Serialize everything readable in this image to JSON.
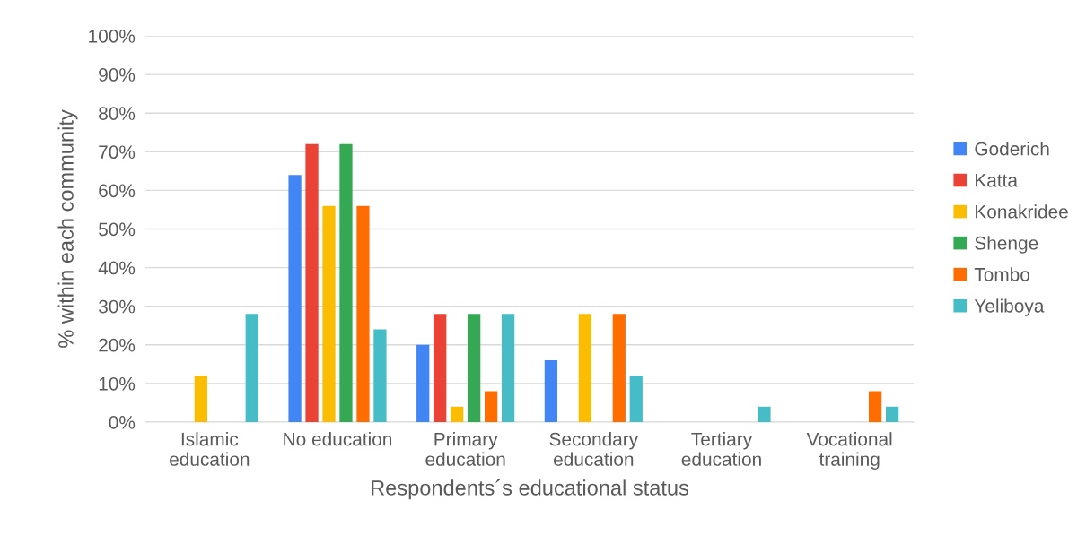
{
  "chart_data": {
    "type": "bar",
    "xlabel": "Respondents´s educational status",
    "ylabel": "% within each community",
    "categories": [
      "Islamic\neducation",
      "No education",
      "Primary\neducation",
      "Secondary\neducation",
      "Tertiary\neducation",
      "Vocational\ntraining"
    ],
    "series": [
      {
        "name": "Goderich",
        "color": "#4285f4",
        "values": [
          0,
          64,
          20,
          16,
          0,
          0
        ]
      },
      {
        "name": "Katta",
        "color": "#ea4335",
        "values": [
          0,
          72,
          28,
          0,
          0,
          0
        ]
      },
      {
        "name": "Konakridee",
        "color": "#fbbc04",
        "values": [
          12,
          56,
          4,
          28,
          0,
          0
        ]
      },
      {
        "name": "Shenge",
        "color": "#34a853",
        "values": [
          0,
          72,
          28,
          0,
          0,
          0
        ]
      },
      {
        "name": "Tombo",
        "color": "#ff6d01",
        "values": [
          0,
          56,
          8,
          28,
          0,
          8
        ]
      },
      {
        "name": "Yeliboya",
        "color": "#46bdc6",
        "values": [
          28,
          24,
          28,
          12,
          4,
          4
        ]
      }
    ],
    "ylim": [
      0,
      100
    ],
    "yticks": [
      {
        "value": 0,
        "label": "0%"
      },
      {
        "value": 10,
        "label": "10%"
      },
      {
        "value": 20,
        "label": "20%"
      },
      {
        "value": 30,
        "label": "30%"
      },
      {
        "value": 40,
        "label": "40%"
      },
      {
        "value": 50,
        "label": "50%"
      },
      {
        "value": 60,
        "label": "60%"
      },
      {
        "value": 70,
        "label": "70%"
      },
      {
        "value": 80,
        "label": "80%"
      },
      {
        "value": 90,
        "label": "90%"
      },
      {
        "value": 100,
        "label": "100%"
      }
    ],
    "grid": "y",
    "legend": "right"
  }
}
